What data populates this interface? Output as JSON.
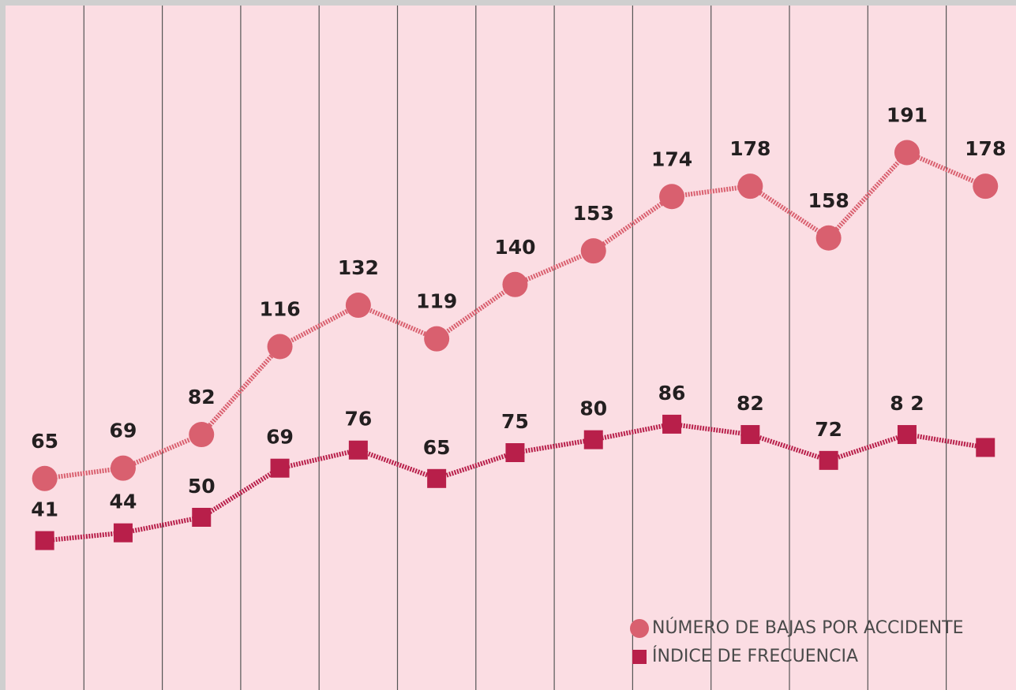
{
  "chart_data": {
    "type": "line",
    "series": [
      {
        "name": "NÚMERO DE BAJAS POR ACCIDENTE",
        "color": "#d9606f",
        "marker": "circle",
        "values": [
          65,
          69,
          82,
          116,
          132,
          119,
          140,
          153,
          174,
          178,
          158,
          191,
          178
        ]
      },
      {
        "name": "ÍNDICE DE FRECUENCIA",
        "color": "#b81f4a",
        "marker": "square",
        "values": [
          41,
          44,
          50,
          69,
          76,
          65,
          75,
          80,
          86,
          82,
          72,
          82,
          77
        ],
        "value_labels": [
          "41",
          "44",
          "50",
          "69",
          "76",
          "65",
          "75",
          "80",
          "86",
          "82",
          "72",
          "8 2",
          null
        ]
      }
    ],
    "ylim": [
      0,
      250
    ],
    "legend": "lower right"
  }
}
